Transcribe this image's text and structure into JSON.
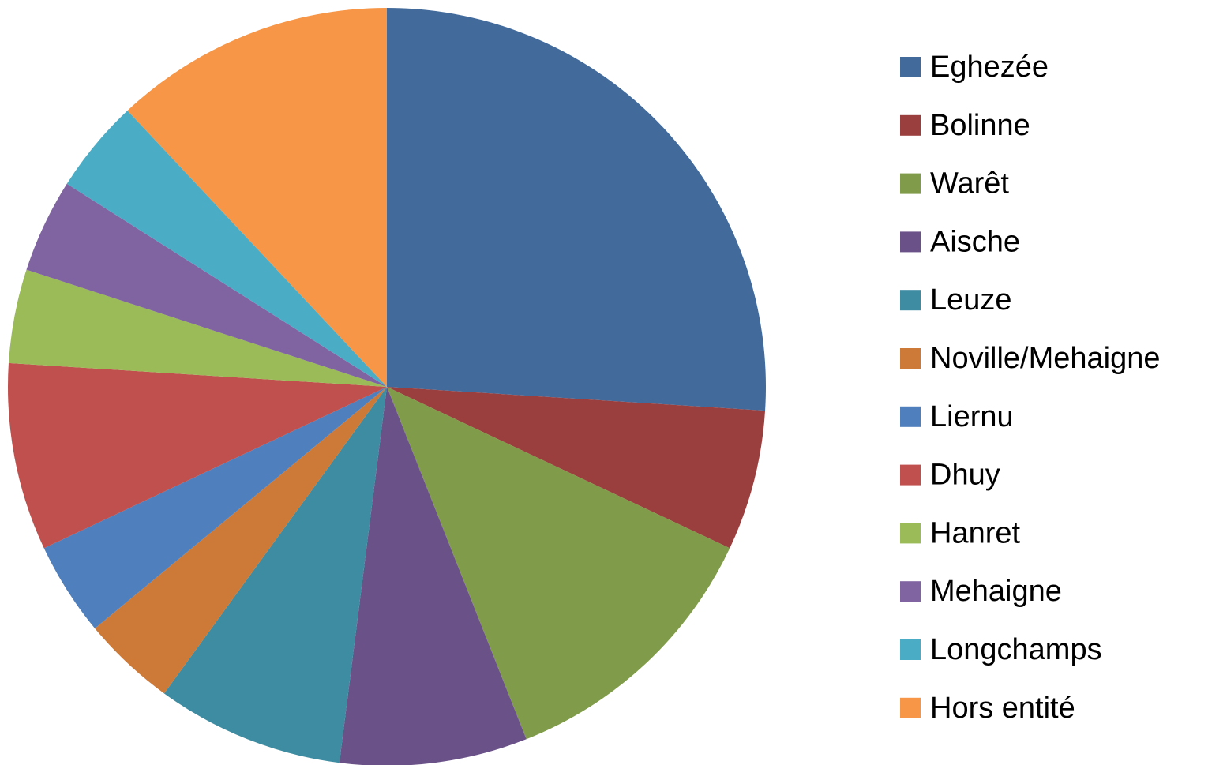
{
  "chart_data": {
    "type": "pie",
    "categories": [
      "Eghezée",
      "Bolinne",
      "Warêt",
      "Aische",
      "Leuze",
      "Noville/Mehaigne",
      "Liernu",
      "Dhuy",
      "Hanret",
      "Mehaigne",
      "Longchamps",
      "Hors entité"
    ],
    "values": [
      13,
      3,
      6,
      4,
      4,
      2,
      2,
      4,
      2,
      2,
      2,
      6
    ],
    "colors": [
      "#426a9a",
      "#9b3f3e",
      "#809c4a",
      "#6a5288",
      "#3d8ca2",
      "#cd7a38",
      "#4f80bd",
      "#c0504d",
      "#9bbb59",
      "#8064a2",
      "#4bacc6",
      "#f79646"
    ],
    "legend": "right"
  }
}
